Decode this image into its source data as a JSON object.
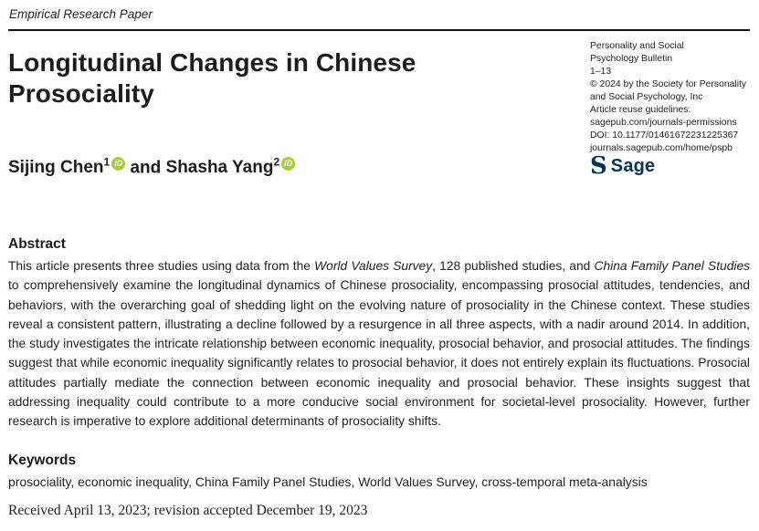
{
  "page": {
    "kicker": "Empirical Research Paper",
    "title": "Longitudinal Changes in Chinese Prosociality"
  },
  "authors": {
    "list": [
      {
        "name": "Sijing Chen",
        "superscript": "1",
        "orcid": true
      },
      {
        "name": "Shasha Yang",
        "superscript": "2",
        "orcid": true
      }
    ],
    "separator": " and ",
    "orcid_label": "iD",
    "orcid_color": "#A6CE39"
  },
  "journal": {
    "lines": [
      "Personality and Social",
      "Psychology Bulletin",
      "1–13",
      "© 2024 by the Society for Personality",
      "and Social Psychology, Inc",
      "Article reuse guidelines:",
      "sagepub.com/journals-permissions",
      "DOI: 10.1177/01461672231225367",
      "journals.sagepub.com/home/pspb"
    ],
    "link_line_indexes": [
      6,
      7,
      8
    ],
    "logo": {
      "glyph": "S",
      "text": "Sage",
      "color": "#00305C"
    }
  },
  "abstract": {
    "heading": "Abstract",
    "segments": [
      {
        "text": "This article presents three studies using data from the "
      },
      {
        "text": "World Values Survey",
        "italic": true
      },
      {
        "text": ", 128 published studies, and "
      },
      {
        "text": "China Family Panel Studies",
        "italic": true
      },
      {
        "text": " to comprehensively examine the longitudinal dynamics of Chinese prosociality, encompassing prosocial attitudes, tendencies, and behaviors, with the overarching goal of shedding light on the evolving nature of prosociality in the Chinese context. These studies reveal a consistent pattern, illustrating a decline followed by a resurgence in all three aspects, with a nadir around 2014. In addition, the study investigates the intricate relationship between economic inequality, prosocial behavior, and prosocial attitudes. The findings suggest that while economic inequality significantly relates to prosocial behavior, it does not entirely explain its fluctuations. Prosocial attitudes partially mediate the connection between economic inequality and prosocial behavior. These insights suggest that addressing inequality could contribute to a more conducive social environment for societal-level prosociality. However, further research is imperative to explore additional determinants of prosociality shifts."
      }
    ]
  },
  "keywords": {
    "heading": "Keywords",
    "text": "prosociality, economic inequality, China Family Panel Studies, World Values Survey, cross-temporal meta-analysis"
  },
  "dates": {
    "received_line": "Received April 13, 2023; revision accepted December 19, 2023"
  }
}
